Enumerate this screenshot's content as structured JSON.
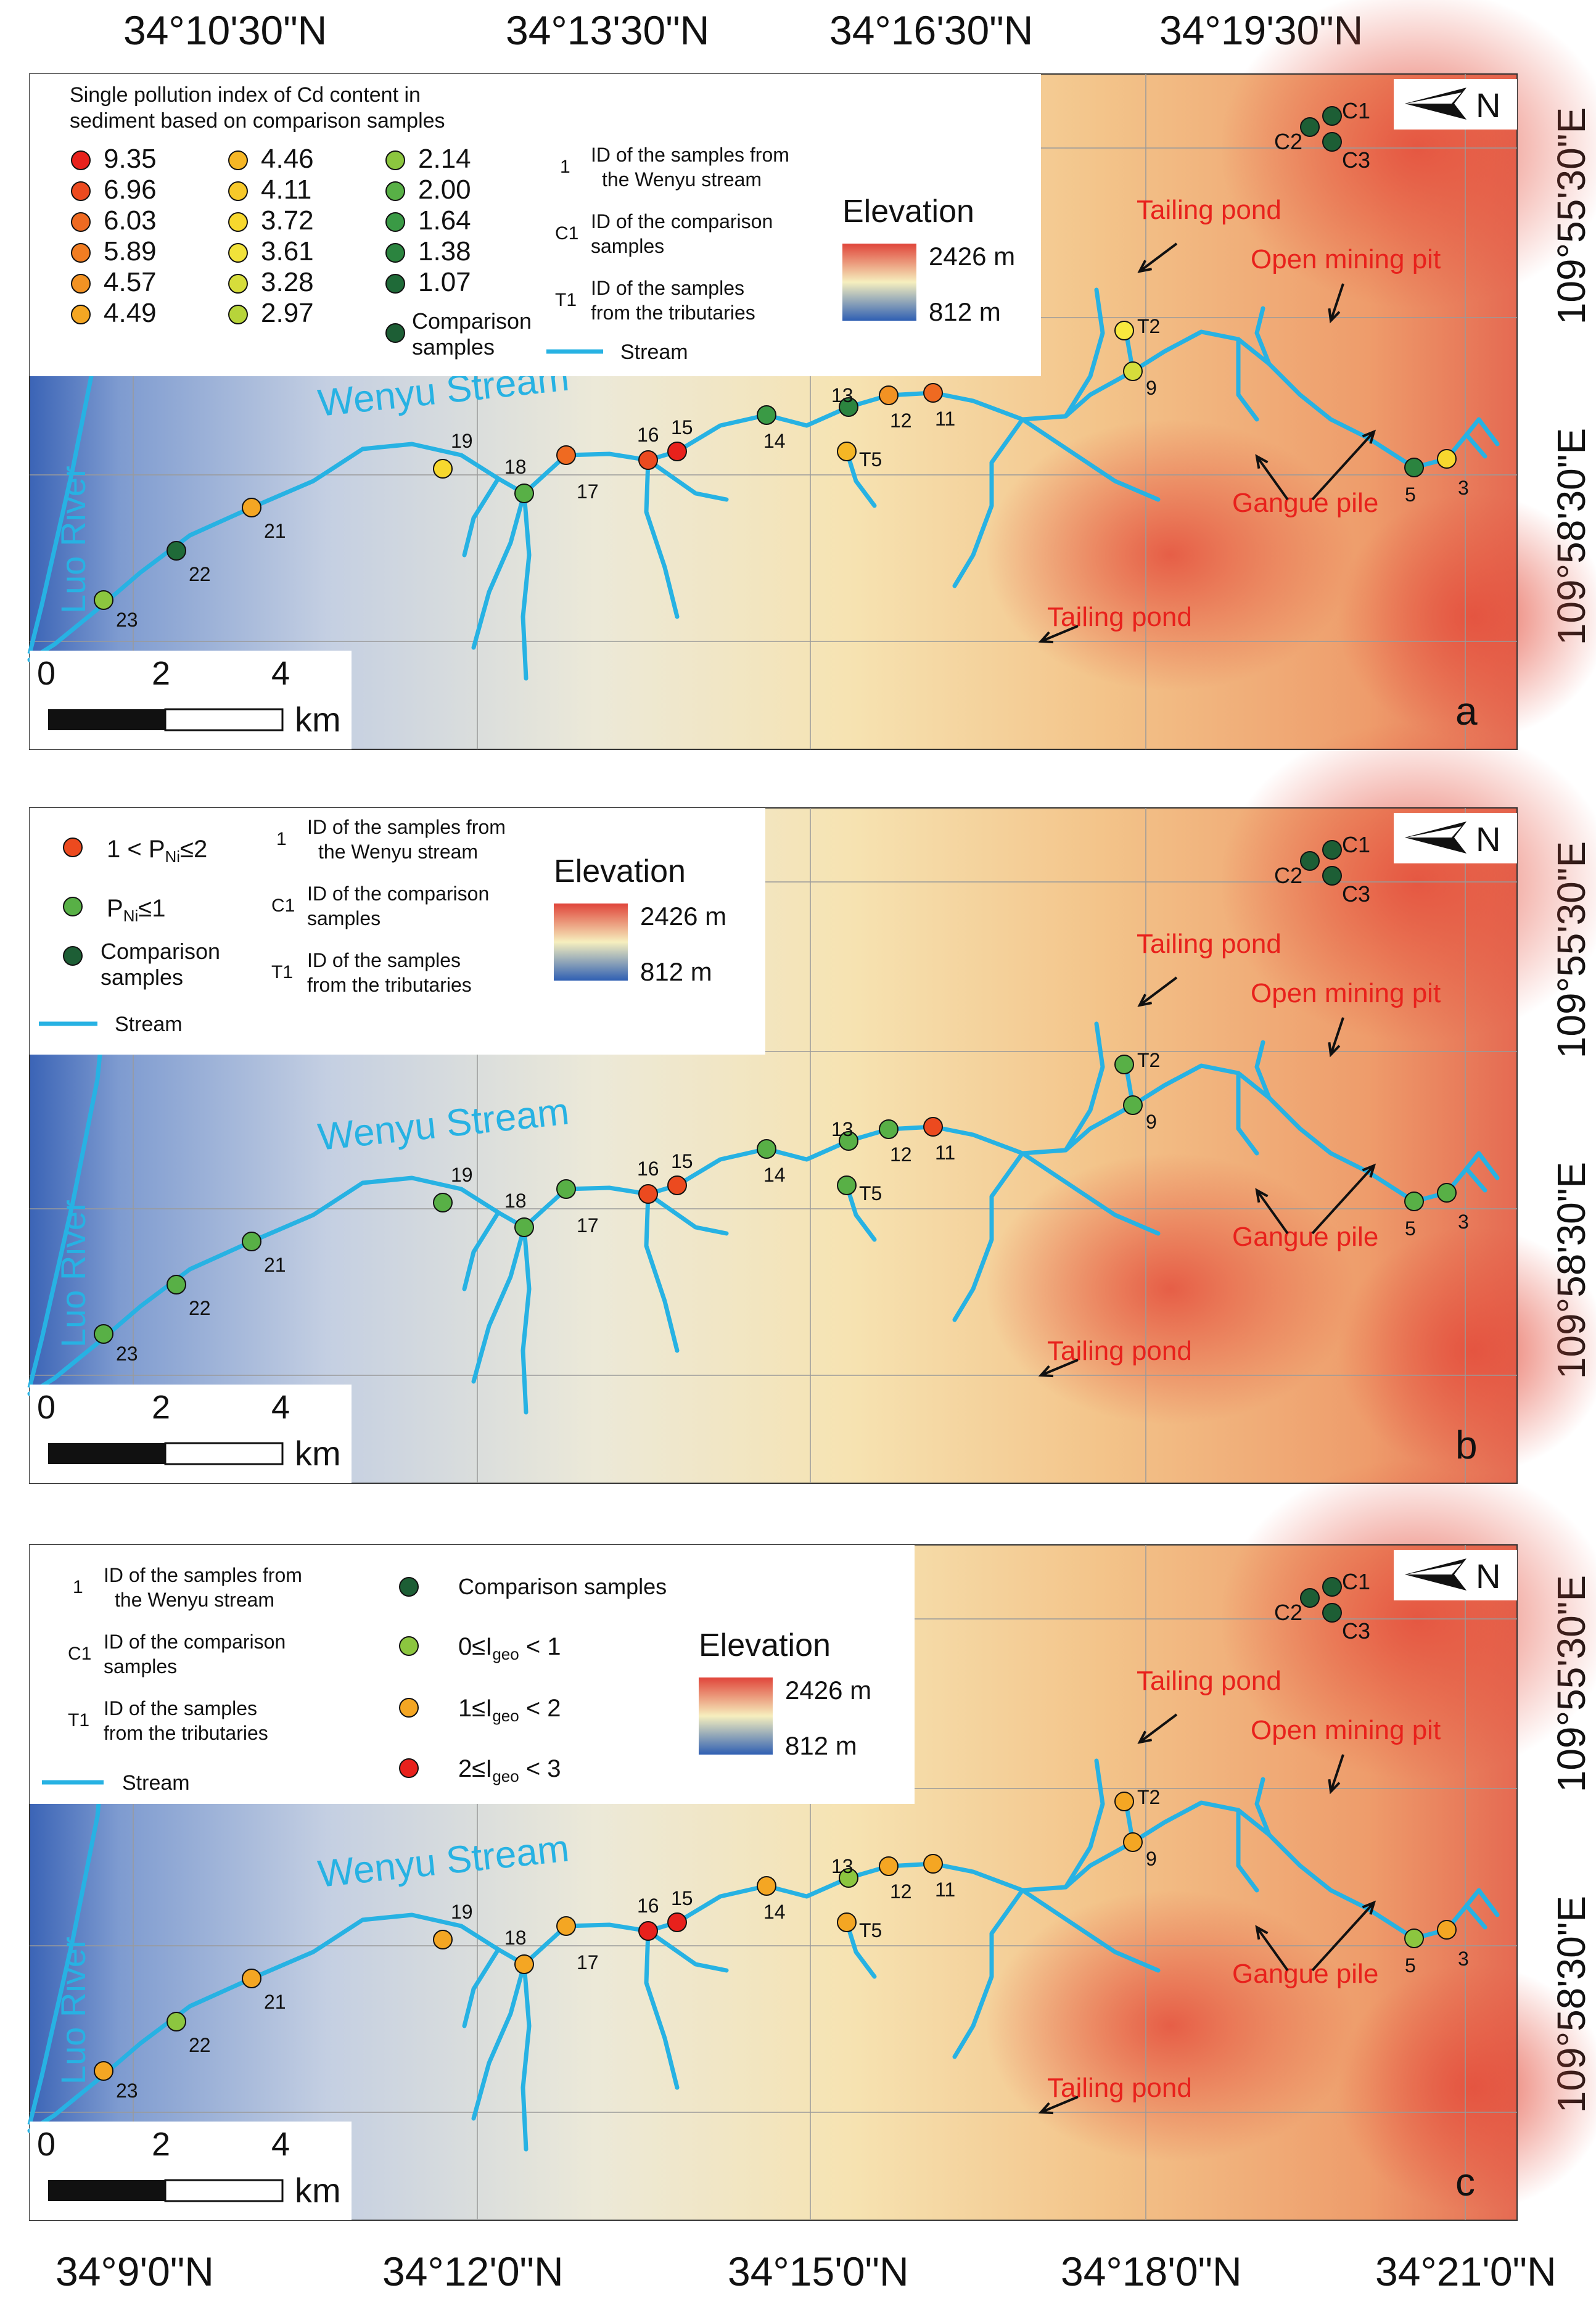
{
  "top_lat_labels": [
    "34°10'30\"N",
    "34°13'30\"N",
    "34°16'30\"N",
    "34°19'30\"N"
  ],
  "bottom_lat_labels": [
    "34°9'0\"N",
    "34°12'0\"N",
    "34°15'0\"N",
    "34°18'0\"N",
    "34°21'0\"N"
  ],
  "lon_labels": [
    "109°55'30\"E",
    "109°58'30\"E"
  ],
  "colors": {
    "stream": "#27b2e3",
    "label_red": "#e8211c",
    "comparison": "#1d5e35",
    "elev_high": "#e0453a",
    "elev_mid": "#f6efbe",
    "elev_low": "#2f5fb3"
  },
  "shared": {
    "stream_name": "Wenyu Stream",
    "river_name": "Luo River",
    "tailing_pond": "Tailing pond",
    "open_pit": "Open mining pit",
    "gangue_pile": "Gangue pile",
    "elevation_title": "Elevation",
    "elev_high": "2426 m",
    "elev_low": "812 m",
    "north": "N",
    "scale_0": "0",
    "scale_2": "2",
    "scale_4": "4",
    "scale_unit": "km",
    "id_sample_num": "1",
    "id_comp_num": "C1",
    "id_trib_num": "T1",
    "id_sample_line1": "ID of the samples from",
    "id_sample_line2": "the Wenyu stream",
    "id_comp_line1": "ID of the comparison",
    "id_comp_line2": "samples",
    "id_trib_line1": "ID of the samples",
    "id_trib_line2": "from the tributaries",
    "stream_legend": "Stream",
    "comparison_line1": "Comparison",
    "comparison_line2": "samples",
    "comparison_single": "Comparison samples"
  },
  "panels": [
    {
      "letter": "a",
      "legend_title_line1": "Single pollution index of Cd content  in",
      "legend_title_line2": "sediment based on comparison samples",
      "legend_col1": [
        {
          "label": "9.35",
          "color": "#e8211c"
        },
        {
          "label": "6.96",
          "color": "#ec4a1f"
        },
        {
          "label": "6.03",
          "color": "#ef6a21"
        },
        {
          "label": "5.89",
          "color": "#f17d22"
        },
        {
          "label": "4.57",
          "color": "#f29223"
        },
        {
          "label": "4.49",
          "color": "#f4a623"
        }
      ],
      "legend_col2": [
        {
          "label": "4.46",
          "color": "#f5b625"
        },
        {
          "label": "4.11",
          "color": "#f7c92a"
        },
        {
          "label": "3.72",
          "color": "#f7d82e"
        },
        {
          "label": "3.61",
          "color": "#f1e23a"
        },
        {
          "label": "3.28",
          "color": "#d6dd3b"
        },
        {
          "label": "2.97",
          "color": "#b7d43a"
        }
      ],
      "legend_col3": [
        {
          "label": "2.14",
          "color": "#8cc63f"
        },
        {
          "label": "2.00",
          "color": "#58b046"
        },
        {
          "label": "1.64",
          "color": "#3a9a45"
        },
        {
          "label": "1.38",
          "color": "#2b843f"
        },
        {
          "label": "1.07",
          "color": "#1f6a38"
        }
      ],
      "samples": [
        {
          "id": "3",
          "color": "#f7d82e"
        },
        {
          "id": "5",
          "color": "#2b843f"
        },
        {
          "id": "9",
          "color": "#d6dd3b"
        },
        {
          "id": "T2",
          "color": "#f7e83e"
        },
        {
          "id": "11",
          "color": "#ef6a21"
        },
        {
          "id": "12",
          "color": "#f29223"
        },
        {
          "id": "13",
          "color": "#2b843f"
        },
        {
          "id": "T5",
          "color": "#f5b625"
        },
        {
          "id": "14",
          "color": "#3a9a45"
        },
        {
          "id": "15",
          "color": "#e8211c"
        },
        {
          "id": "16",
          "color": "#ec4a1f"
        },
        {
          "id": "17",
          "color": "#ef6a21"
        },
        {
          "id": "18",
          "color": "#58b046"
        },
        {
          "id": "19",
          "color": "#f7d82e"
        },
        {
          "id": "21",
          "color": "#f4a623"
        },
        {
          "id": "22",
          "color": "#1f6a38"
        },
        {
          "id": "23",
          "color": "#8cc63f"
        }
      ]
    },
    {
      "letter": "b",
      "legend_item1": "1 < P",
      "legend_item1_sub": "Ni",
      "legend_item1_tail": "≤2",
      "legend_item2": "P",
      "legend_item2_sub": "Ni",
      "legend_item2_tail": "≤1",
      "legend_item1_color": "#ec4a1f",
      "legend_item2_color": "#58b046",
      "samples": [
        {
          "id": "3",
          "color": "#58b046"
        },
        {
          "id": "5",
          "color": "#58b046"
        },
        {
          "id": "9",
          "color": "#58b046"
        },
        {
          "id": "T2",
          "color": "#58b046"
        },
        {
          "id": "11",
          "color": "#ec4a1f"
        },
        {
          "id": "12",
          "color": "#58b046"
        },
        {
          "id": "13",
          "color": "#58b046"
        },
        {
          "id": "T5",
          "color": "#58b046"
        },
        {
          "id": "14",
          "color": "#58b046"
        },
        {
          "id": "15",
          "color": "#ec4a1f"
        },
        {
          "id": "16",
          "color": "#ec4a1f"
        },
        {
          "id": "17",
          "color": "#58b046"
        },
        {
          "id": "18",
          "color": "#58b046"
        },
        {
          "id": "19",
          "color": "#58b046"
        },
        {
          "id": "21",
          "color": "#58b046"
        },
        {
          "id": "22",
          "color": "#58b046"
        },
        {
          "id": "23",
          "color": "#58b046"
        }
      ]
    },
    {
      "letter": "c",
      "legend_c1": "0≤I",
      "legend_c1_tail": " < 1",
      "legend_c1_color": "#8cc63f",
      "legend_c2": "1≤I",
      "legend_c2_tail": " < 2",
      "legend_c2_color": "#f4a623",
      "legend_c3": "2≤I",
      "legend_c3_tail": " < 3",
      "legend_c3_color": "#e8211c",
      "legend_sub": "geo",
      "samples": [
        {
          "id": "3",
          "color": "#f4a623"
        },
        {
          "id": "5",
          "color": "#8cc63f"
        },
        {
          "id": "9",
          "color": "#f4a623"
        },
        {
          "id": "T2",
          "color": "#f4a623"
        },
        {
          "id": "11",
          "color": "#f4a623"
        },
        {
          "id": "12",
          "color": "#f4a623"
        },
        {
          "id": "13",
          "color": "#8cc63f"
        },
        {
          "id": "T5",
          "color": "#f4a623"
        },
        {
          "id": "14",
          "color": "#f4a623"
        },
        {
          "id": "15",
          "color": "#e8211c"
        },
        {
          "id": "16",
          "color": "#e8211c"
        },
        {
          "id": "17",
          "color": "#f4a623"
        },
        {
          "id": "18",
          "color": "#f4a623"
        },
        {
          "id": "19",
          "color": "#f4a623"
        },
        {
          "id": "21",
          "color": "#f4a623"
        },
        {
          "id": "22",
          "color": "#8cc63f"
        },
        {
          "id": "23",
          "color": "#f4a623"
        }
      ]
    }
  ]
}
